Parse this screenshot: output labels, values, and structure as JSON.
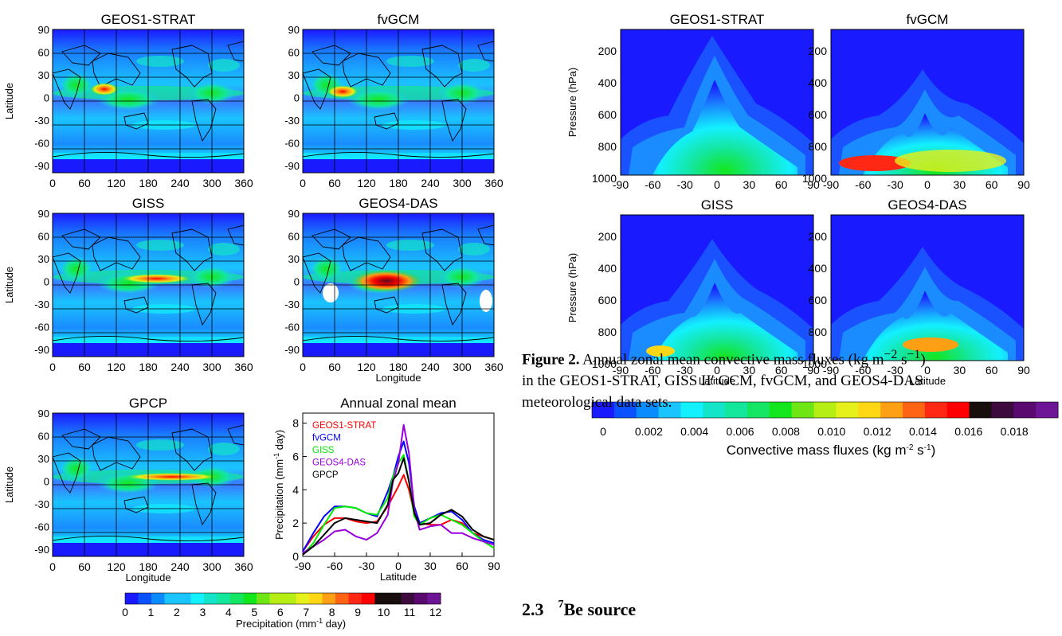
{
  "figure1": {
    "maps": [
      {
        "title": "GEOS1-STRAT",
        "ylabel": "Latitude",
        "xlabel": ""
      },
      {
        "title": "fvGCM",
        "ylabel": "",
        "xlabel": ""
      },
      {
        "title": "GISS",
        "ylabel": "Latitude",
        "xlabel": ""
      },
      {
        "title": "GEOS4-DAS",
        "ylabel": "",
        "xlabel": "Longitude"
      },
      {
        "title": "GPCP",
        "ylabel": "Latitude",
        "xlabel": "Longitude"
      }
    ],
    "lon_ticks": [
      "0",
      "60",
      "120",
      "180",
      "240",
      "300",
      "360"
    ],
    "lat_ticks": [
      "90",
      "60",
      "30",
      "0",
      "-30",
      "-60",
      "-90"
    ],
    "colorbar": {
      "label": "Precipitation (mm",
      "label_sup": "-1",
      "label_tail": " day)",
      "ticks": [
        "0",
        "1",
        "2",
        "3",
        "4",
        "5",
        "6",
        "7",
        "8",
        "9",
        "10",
        "11",
        "12"
      ]
    }
  },
  "chart_data": [
    {
      "type": "line",
      "title": "Annual zonal mean",
      "xlabel": "Latitude",
      "ylabel": "Precipitation (mm",
      "ylabel_sup": "-1",
      "ylabel_tail": " day)",
      "xlim": [
        -90,
        90
      ],
      "ylim": [
        0,
        8
      ],
      "x_ticks": [
        -90,
        -60,
        -30,
        0,
        30,
        60,
        90
      ],
      "y_ticks": [
        0,
        2,
        4,
        6,
        8
      ],
      "legend": "top-left",
      "x": [
        -90,
        -80,
        -70,
        -60,
        -50,
        -40,
        -30,
        -20,
        -10,
        -5,
        0,
        5,
        10,
        15,
        20,
        30,
        40,
        50,
        60,
        70,
        80,
        90
      ],
      "series": [
        {
          "name": "GEOS1-STRAT",
          "color": "#ff0000",
          "values": [
            0.3,
            1.2,
            1.9,
            2.3,
            2.3,
            2.1,
            2.0,
            2.1,
            3.0,
            3.6,
            4.2,
            4.9,
            4.0,
            2.6,
            2.0,
            1.9,
            1.9,
            2.2,
            2.0,
            1.4,
            1.2,
            1.0
          ]
        },
        {
          "name": "fvGCM",
          "color": "#0000ff",
          "values": [
            0.3,
            1.4,
            2.4,
            3.0,
            3.0,
            2.9,
            2.6,
            2.4,
            3.9,
            4.8,
            6.0,
            6.9,
            5.6,
            3.0,
            2.0,
            2.3,
            2.6,
            2.7,
            2.2,
            1.4,
            1.0,
            0.8
          ]
        },
        {
          "name": "GISS",
          "color": "#00ee00",
          "values": [
            0.1,
            0.8,
            1.9,
            2.9,
            3.0,
            2.9,
            2.6,
            2.5,
            3.5,
            4.8,
            5.6,
            6.1,
            4.5,
            2.4,
            1.9,
            2.3,
            2.5,
            2.2,
            1.9,
            1.4,
            0.9,
            0.5
          ]
        },
        {
          "name": "GEOS4-DAS",
          "color": "#9900dd",
          "values": [
            0.2,
            0.6,
            1.0,
            1.5,
            1.6,
            1.2,
            1.0,
            1.4,
            2.5,
            4.5,
            5.6,
            7.9,
            6.2,
            2.8,
            1.6,
            1.8,
            1.9,
            1.4,
            1.4,
            1.1,
            0.9,
            0.7
          ]
        },
        {
          "name": "GPCP",
          "color": "#000000",
          "values": [
            0.1,
            0.6,
            1.3,
            2.0,
            2.3,
            2.2,
            2.1,
            2.0,
            3.1,
            4.6,
            5.0,
            5.9,
            4.5,
            2.6,
            1.9,
            2.0,
            2.5,
            2.8,
            2.4,
            1.6,
            1.2,
            1.0
          ]
        }
      ]
    }
  ],
  "figure2": {
    "panels": [
      {
        "title": "GEOS1-STRAT",
        "ylabel": "Pressure (hPa)",
        "xlabel": ""
      },
      {
        "title": "fvGCM",
        "ylabel": "",
        "xlabel": ""
      },
      {
        "title": "GISS",
        "ylabel": "Pressure (hPa)",
        "xlabel": "Latitude"
      },
      {
        "title": "GEOS4-DAS",
        "ylabel": "",
        "xlabel": "Latitude"
      }
    ],
    "p_ticks": [
      "200",
      "400",
      "600",
      "800",
      "1000"
    ],
    "lat_ticks": [
      "-90",
      "-60",
      "-30",
      "0",
      "30",
      "60",
      "90"
    ],
    "colorbar": {
      "label": "Convective mass fluxes (kg m",
      "label_sup1": "-2",
      "label_mid": " s",
      "label_sup2": "-1",
      "label_tail": ")",
      "ticks": [
        "0",
        "0.002",
        "0.004",
        "0.006",
        "0.008",
        "0.010",
        "0.012",
        "0.014",
        "0.016",
        "0.018"
      ]
    }
  },
  "caption": {
    "label": "Figure 2.",
    "line1": " Annual zonal mean convective mass fluxes (kg m",
    "line1_sup1": "−2",
    "line1_mid": " s",
    "line1_sup2": "−1",
    "line1_tail": ")",
    "line2": "in the GEOS1-STRAT, GISS II′ GCM, fvGCM, and GEOS4-DAS",
    "line3": "meteorological data sets."
  },
  "section": {
    "number": "2.3",
    "sup": "7",
    "title": "Be source"
  },
  "colors": {
    "palette": [
      "#1a1aff",
      "#0a52ff",
      "#0a8cff",
      "#1ac4ff",
      "#13f0ff",
      "#14e5c8",
      "#14e69b",
      "#14e664",
      "#14e61e",
      "#6ee614",
      "#b4ee14",
      "#e6f01a",
      "#ffd714",
      "#ff9f14",
      "#ff6414",
      "#ff2814",
      "#ff0000",
      "#190e0e",
      "#3c0a3c",
      "#5a0a6e",
      "#6e1496"
    ]
  }
}
